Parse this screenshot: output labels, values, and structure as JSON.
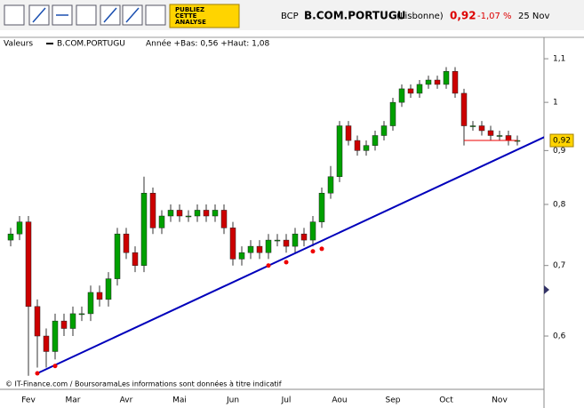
{
  "header": {
    "symbol": "BCP",
    "name": "B.COM.PORTUGU",
    "market": "(Lisbonne)",
    "price": "0,92",
    "change": "-1,07 %",
    "date": "25 Nov",
    "publish_button": [
      "PUBLIEZ",
      "CETTE",
      "ANALYSE"
    ]
  },
  "legend": {
    "label": "Valeurs",
    "series": "B.COM.PORTUGU",
    "stats": "Année +Bas: 0,56 +Haut: 1,08"
  },
  "footer": "© IT-Finance.com / BoursoramaLes informations sont données à titre indicatif",
  "chart_data": {
    "type": "candlestick",
    "log_scale": true,
    "categories": [
      null,
      null,
      "Fev",
      null,
      null,
      null,
      null,
      "Mar",
      null,
      null,
      null,
      null,
      null,
      "Avr",
      null,
      null,
      null,
      null,
      null,
      "Mai",
      null,
      null,
      null,
      null,
      null,
      "Jun",
      null,
      null,
      null,
      null,
      null,
      "Jul",
      null,
      null,
      null,
      null,
      null,
      "Aou",
      null,
      null,
      null,
      null,
      null,
      "Sep",
      null,
      null,
      null,
      null,
      null,
      "Oct",
      null,
      null,
      null,
      null,
      null,
      "Nov",
      null,
      null
    ],
    "open": [
      0.74,
      0.75,
      0.77,
      0.64,
      0.6,
      0.58,
      0.62,
      0.61,
      0.63,
      0.63,
      0.66,
      0.65,
      0.68,
      0.75,
      0.72,
      0.7,
      0.82,
      0.76,
      0.78,
      0.79,
      0.78,
      0.78,
      0.79,
      0.78,
      0.79,
      0.76,
      0.71,
      0.72,
      0.73,
      0.72,
      0.74,
      0.74,
      0.73,
      0.75,
      0.74,
      0.77,
      0.82,
      0.85,
      0.95,
      0.92,
      0.9,
      0.91,
      0.93,
      0.95,
      1.0,
      1.03,
      1.02,
      1.04,
      1.05,
      1.04,
      1.07,
      1.02,
      0.95,
      0.95,
      0.94,
      0.93,
      0.93,
      0.92
    ],
    "high": [
      0.76,
      0.78,
      0.78,
      0.65,
      0.61,
      0.63,
      0.63,
      0.64,
      0.64,
      0.67,
      0.67,
      0.69,
      0.76,
      0.76,
      0.73,
      0.85,
      0.83,
      0.79,
      0.8,
      0.8,
      0.79,
      0.8,
      0.8,
      0.8,
      0.8,
      0.77,
      0.73,
      0.74,
      0.74,
      0.75,
      0.75,
      0.75,
      0.76,
      0.76,
      0.78,
      0.83,
      0.87,
      0.96,
      0.96,
      0.93,
      0.92,
      0.94,
      0.96,
      1.01,
      1.04,
      1.04,
      1.05,
      1.06,
      1.06,
      1.08,
      1.08,
      1.03,
      0.96,
      0.96,
      0.95,
      0.94,
      0.94,
      0.93
    ],
    "low": [
      0.73,
      0.74,
      0.55,
      0.56,
      0.56,
      0.57,
      0.6,
      0.6,
      0.62,
      0.62,
      0.64,
      0.64,
      0.67,
      0.71,
      0.69,
      0.69,
      0.75,
      0.75,
      0.77,
      0.77,
      0.77,
      0.77,
      0.77,
      0.77,
      0.75,
      0.7,
      0.7,
      0.71,
      0.71,
      0.71,
      0.73,
      0.72,
      0.72,
      0.73,
      0.73,
      0.76,
      0.81,
      0.84,
      0.91,
      0.89,
      0.89,
      0.9,
      0.92,
      0.94,
      0.99,
      1.01,
      1.01,
      1.03,
      1.03,
      1.03,
      1.01,
      0.91,
      0.94,
      0.93,
      0.92,
      0.92,
      0.91,
      0.91
    ],
    "close": [
      0.75,
      0.77,
      0.64,
      0.6,
      0.58,
      0.62,
      0.61,
      0.63,
      0.63,
      0.66,
      0.65,
      0.68,
      0.75,
      0.72,
      0.7,
      0.82,
      0.76,
      0.78,
      0.79,
      0.78,
      0.78,
      0.79,
      0.78,
      0.79,
      0.76,
      0.71,
      0.72,
      0.73,
      0.72,
      0.74,
      0.74,
      0.73,
      0.75,
      0.74,
      0.77,
      0.82,
      0.85,
      0.95,
      0.92,
      0.9,
      0.91,
      0.93,
      0.95,
      1.0,
      1.03,
      1.02,
      1.04,
      1.05,
      1.04,
      1.07,
      1.02,
      0.95,
      0.95,
      0.94,
      0.93,
      0.93,
      0.92,
      0.92
    ],
    "up_color": "#00a000",
    "down_color": "#cc0000",
    "ylim": [
      0.534,
      1.146
    ],
    "yticks": [
      {
        "value": 1.1,
        "label": "1,1"
      },
      1,
      {
        "value": 0.9,
        "label": "0,9"
      },
      {
        "value": 0.8,
        "label": "0,8"
      },
      {
        "value": 0.7,
        "label": "0,7"
      },
      {
        "value": 0.6,
        "label": "0,6"
      }
    ],
    "trendline": {
      "color": "#0000bb",
      "start": [
        3,
        0.553
      ],
      "end": [
        61,
        0.935
      ]
    },
    "touch_points": {
      "color": "#ee0000",
      "x": [
        3,
        5,
        29,
        31,
        34,
        35
      ],
      "y": [
        0.553,
        0.562,
        0.7,
        0.705,
        0.722,
        0.726
      ]
    },
    "support_line": {
      "color": "#ee0000",
      "start": [
        51,
        0.92
      ],
      "end": [
        57,
        0.92
      ]
    },
    "last_price": {
      "value": 0.92,
      "label": "0,92"
    }
  }
}
